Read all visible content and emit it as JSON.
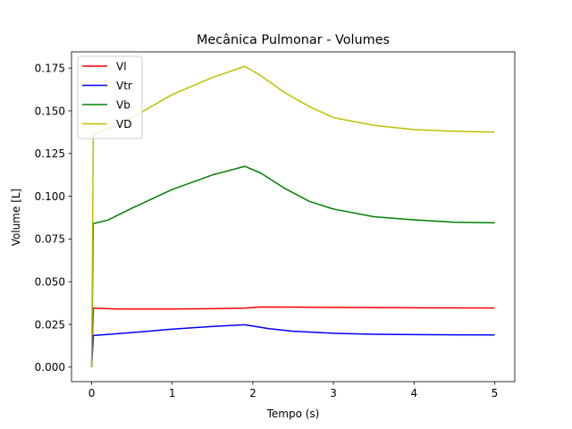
{
  "chart_data": {
    "type": "line",
    "title": "Mecânica Pulmonar - Volumes",
    "xlabel": "Tempo (s)",
    "ylabel": "Volume [L]",
    "xlim": [
      -0.25,
      5.25
    ],
    "ylim": [
      -0.0085,
      0.1845
    ],
    "xticks": [
      0,
      1,
      2,
      3,
      4,
      5
    ],
    "xtick_labels": [
      "0",
      "1",
      "2",
      "3",
      "4",
      "5"
    ],
    "yticks": [
      0.0,
      0.025,
      0.05,
      0.075,
      0.1,
      0.125,
      0.15,
      0.175
    ],
    "ytick_labels": [
      "0.000",
      "0.025",
      "0.050",
      "0.075",
      "0.100",
      "0.125",
      "0.150",
      "0.175"
    ],
    "grid": false,
    "legend_position": "upper-left",
    "series": [
      {
        "name": "Vl",
        "color": "#ff0000",
        "x": [
          0,
          0.02,
          0.3,
          1.0,
          1.5,
          1.9,
          2.1,
          2.5,
          3.0,
          4.0,
          5.0
        ],
        "y": [
          0.0,
          0.0345,
          0.034,
          0.034,
          0.0342,
          0.0345,
          0.0352,
          0.0351,
          0.0349,
          0.0347,
          0.0346
        ]
      },
      {
        "name": "Vtr",
        "color": "#0000ff",
        "x": [
          0,
          0.02,
          0.3,
          0.7,
          1.0,
          1.5,
          1.9,
          2.2,
          2.5,
          3.0,
          3.5,
          4.0,
          5.0
        ],
        "y": [
          0.0,
          0.0185,
          0.0195,
          0.021,
          0.0222,
          0.0238,
          0.0248,
          0.0225,
          0.021,
          0.0198,
          0.0192,
          0.019,
          0.0188
        ]
      },
      {
        "name": "Vb",
        "color": "#008000",
        "x": [
          0,
          0.02,
          0.2,
          0.5,
          1.0,
          1.5,
          1.9,
          2.1,
          2.4,
          2.7,
          3.0,
          3.5,
          4.0,
          4.5,
          5.0
        ],
        "y": [
          0.0,
          0.084,
          0.086,
          0.093,
          0.104,
          0.1125,
          0.1175,
          0.1135,
          0.1045,
          0.097,
          0.0925,
          0.088,
          0.0862,
          0.0848,
          0.0845
        ]
      },
      {
        "name": "VD",
        "color": "#bfbf00",
        "x": [
          0,
          0.02,
          0.2,
          0.5,
          1.0,
          1.5,
          1.9,
          2.1,
          2.4,
          2.7,
          3.0,
          3.5,
          4.0,
          4.5,
          5.0
        ],
        "y": [
          0.0,
          0.1365,
          0.1395,
          0.146,
          0.1595,
          0.1695,
          0.176,
          0.1705,
          0.1605,
          0.1525,
          0.146,
          0.1415,
          0.139,
          0.138,
          0.1375
        ]
      }
    ]
  }
}
